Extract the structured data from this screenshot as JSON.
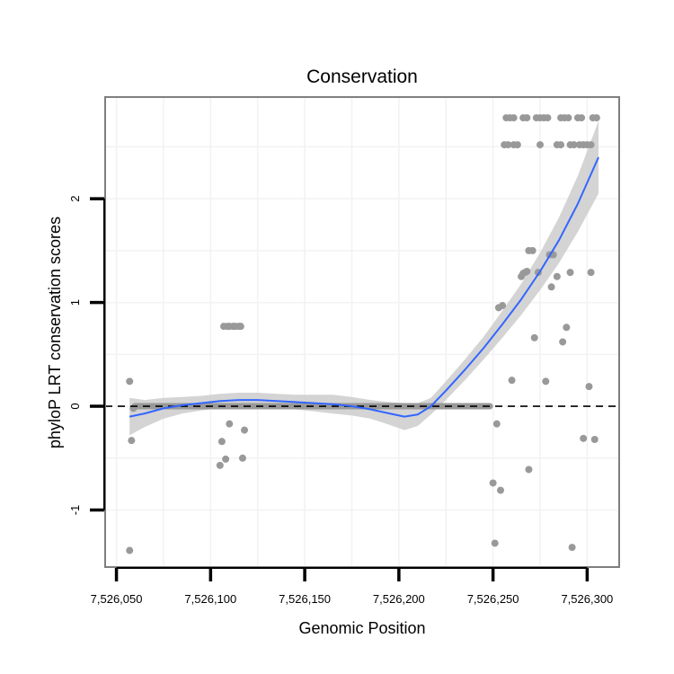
{
  "chart_data": {
    "type": "scatter",
    "title": "Conservation",
    "xlabel": "Genomic Position",
    "ylabel": "phyloP LRT conservation scores",
    "xlim": [
      7526044,
      7526317
    ],
    "ylim": [
      -1.55,
      2.98
    ],
    "x_ticks": [
      7526050,
      7526100,
      7526150,
      7526200,
      7526250,
      7526300
    ],
    "x_tick_labels": [
      "7,526,050",
      "7,526,100",
      "7,526,150",
      "7,526,200",
      "7,526,250",
      "7,526,300"
    ],
    "y_ticks": [
      -1,
      0,
      1,
      2
    ],
    "y_tick_labels": [
      "-1",
      "0",
      "1",
      "2"
    ],
    "reference_line_y": 0,
    "grid": true,
    "colors": {
      "points": "#999999",
      "smooth": "#3366FF",
      "band": "#cccccc",
      "panel_border": "#7f7f7f",
      "grid": "#f2f2f2"
    },
    "points": [
      {
        "x": 7526057,
        "y": 0.24
      },
      {
        "x": 7526058,
        "y": -0.33
      },
      {
        "x": 7526057,
        "y": -1.39
      },
      {
        "x": 7526059,
        "y": -0.02
      },
      {
        "x": 7526105,
        "y": -0.57
      },
      {
        "x": 7526106,
        "y": -0.34
      },
      {
        "x": 7526108,
        "y": -0.51
      },
      {
        "x": 7526110,
        "y": -0.17
      },
      {
        "x": 7526117,
        "y": -0.5
      },
      {
        "x": 7526118,
        "y": -0.23
      },
      {
        "x": 7526107,
        "y": 0.77
      },
      {
        "x": 7526109,
        "y": 0.77
      },
      {
        "x": 7526110,
        "y": 0.77
      },
      {
        "x": 7526112,
        "y": 0.77
      },
      {
        "x": 7526113,
        "y": 0.77
      },
      {
        "x": 7526115,
        "y": 0.77
      },
      {
        "x": 7526116,
        "y": 0.77
      },
      {
        "x": 7526250,
        "y": -0.74
      },
      {
        "x": 7526251,
        "y": -1.32
      },
      {
        "x": 7526252,
        "y": -0.17
      },
      {
        "x": 7526254,
        "y": -0.81
      },
      {
        "x": 7526253,
        "y": 0.95
      },
      {
        "x": 7526255,
        "y": 0.97
      },
      {
        "x": 7526260,
        "y": 0.25
      },
      {
        "x": 7526265,
        "y": 1.25
      },
      {
        "x": 7526266,
        "y": 1.28
      },
      {
        "x": 7526267,
        "y": 1.29
      },
      {
        "x": 7526268,
        "y": 1.3
      },
      {
        "x": 7526269,
        "y": -0.61
      },
      {
        "x": 7526269,
        "y": 1.5
      },
      {
        "x": 7526271,
        "y": 1.5
      },
      {
        "x": 7526272,
        "y": 0.66
      },
      {
        "x": 7526274,
        "y": 1.29
      },
      {
        "x": 7526278,
        "y": 0.24
      },
      {
        "x": 7526280,
        "y": 1.46
      },
      {
        "x": 7526281,
        "y": 1.15
      },
      {
        "x": 7526282,
        "y": 1.46
      },
      {
        "x": 7526284,
        "y": 1.25
      },
      {
        "x": 7526287,
        "y": 0.62
      },
      {
        "x": 7526289,
        "y": 0.76
      },
      {
        "x": 7526291,
        "y": 1.29
      },
      {
        "x": 7526292,
        "y": -1.36
      },
      {
        "x": 7526298,
        "y": -0.31
      },
      {
        "x": 7526301,
        "y": 0.19
      },
      {
        "x": 7526302,
        "y": 1.29
      },
      {
        "x": 7526304,
        "y": -0.32
      },
      {
        "x": 7526257,
        "y": 2.78
      },
      {
        "x": 7526259,
        "y": 2.78
      },
      {
        "x": 7526261,
        "y": 2.78
      },
      {
        "x": 7526266,
        "y": 2.78
      },
      {
        "x": 7526268,
        "y": 2.78
      },
      {
        "x": 7526273,
        "y": 2.78
      },
      {
        "x": 7526275,
        "y": 2.78
      },
      {
        "x": 7526277,
        "y": 2.78
      },
      {
        "x": 7526279,
        "y": 2.78
      },
      {
        "x": 7526286,
        "y": 2.78
      },
      {
        "x": 7526288,
        "y": 2.78
      },
      {
        "x": 7526290,
        "y": 2.78
      },
      {
        "x": 7526295,
        "y": 2.78
      },
      {
        "x": 7526297,
        "y": 2.78
      },
      {
        "x": 7526303,
        "y": 2.78
      },
      {
        "x": 7526305,
        "y": 2.78
      },
      {
        "x": 7526256,
        "y": 2.52
      },
      {
        "x": 7526258,
        "y": 2.52
      },
      {
        "x": 7526261,
        "y": 2.52
      },
      {
        "x": 7526263,
        "y": 2.52
      },
      {
        "x": 7526275,
        "y": 2.52
      },
      {
        "x": 7526284,
        "y": 2.52
      },
      {
        "x": 7526286,
        "y": 2.52
      },
      {
        "x": 7526291,
        "y": 2.52
      },
      {
        "x": 7526293,
        "y": 2.52
      },
      {
        "x": 7526296,
        "y": 2.52
      },
      {
        "x": 7526298,
        "y": 2.52
      },
      {
        "x": 7526300,
        "y": 2.52
      },
      {
        "x": 7526302,
        "y": 2.52
      }
    ],
    "zero_run": {
      "x_start": 7526058,
      "x_end": 7526250,
      "y": 0
    },
    "smooth_line": [
      {
        "x": 7526057,
        "y": -0.1
      },
      {
        "x": 7526065,
        "y": -0.07
      },
      {
        "x": 7526075,
        "y": -0.02
      },
      {
        "x": 7526085,
        "y": 0.01
      },
      {
        "x": 7526095,
        "y": 0.03
      },
      {
        "x": 7526105,
        "y": 0.05
      },
      {
        "x": 7526115,
        "y": 0.06
      },
      {
        "x": 7526125,
        "y": 0.06
      },
      {
        "x": 7526135,
        "y": 0.05
      },
      {
        "x": 7526145,
        "y": 0.04
      },
      {
        "x": 7526155,
        "y": 0.03
      },
      {
        "x": 7526165,
        "y": 0.02
      },
      {
        "x": 7526175,
        "y": 0.0
      },
      {
        "x": 7526185,
        "y": -0.03
      },
      {
        "x": 7526195,
        "y": -0.07
      },
      {
        "x": 7526203,
        "y": -0.1
      },
      {
        "x": 7526210,
        "y": -0.08
      },
      {
        "x": 7526217,
        "y": 0.0
      },
      {
        "x": 7526225,
        "y": 0.15
      },
      {
        "x": 7526235,
        "y": 0.35
      },
      {
        "x": 7526245,
        "y": 0.56
      },
      {
        "x": 7526255,
        "y": 0.79
      },
      {
        "x": 7526265,
        "y": 1.03
      },
      {
        "x": 7526275,
        "y": 1.3
      },
      {
        "x": 7526285,
        "y": 1.6
      },
      {
        "x": 7526295,
        "y": 1.95
      },
      {
        "x": 7526306,
        "y": 2.4
      }
    ],
    "confidence_band": [
      {
        "x": 7526057,
        "lower": -0.28,
        "upper": 0.08
      },
      {
        "x": 7526065,
        "lower": -0.2,
        "upper": 0.06
      },
      {
        "x": 7526075,
        "lower": -0.12,
        "upper": 0.08
      },
      {
        "x": 7526085,
        "lower": -0.07,
        "upper": 0.09
      },
      {
        "x": 7526095,
        "lower": -0.04,
        "upper": 0.1
      },
      {
        "x": 7526105,
        "lower": -0.02,
        "upper": 0.12
      },
      {
        "x": 7526115,
        "lower": -0.01,
        "upper": 0.13
      },
      {
        "x": 7526125,
        "lower": -0.01,
        "upper": 0.13
      },
      {
        "x": 7526135,
        "lower": -0.02,
        "upper": 0.12
      },
      {
        "x": 7526145,
        "lower": -0.03,
        "upper": 0.11
      },
      {
        "x": 7526155,
        "lower": -0.05,
        "upper": 0.11
      },
      {
        "x": 7526165,
        "lower": -0.07,
        "upper": 0.11
      },
      {
        "x": 7526175,
        "lower": -0.09,
        "upper": 0.09
      },
      {
        "x": 7526185,
        "lower": -0.12,
        "upper": 0.06
      },
      {
        "x": 7526195,
        "lower": -0.18,
        "upper": 0.04
      },
      {
        "x": 7526203,
        "lower": -0.23,
        "upper": 0.03
      },
      {
        "x": 7526210,
        "lower": -0.19,
        "upper": 0.03
      },
      {
        "x": 7526217,
        "lower": -0.08,
        "upper": 0.08
      },
      {
        "x": 7526225,
        "lower": 0.06,
        "upper": 0.24
      },
      {
        "x": 7526235,
        "lower": 0.25,
        "upper": 0.45
      },
      {
        "x": 7526245,
        "lower": 0.45,
        "upper": 0.67
      },
      {
        "x": 7526255,
        "lower": 0.66,
        "upper": 0.92
      },
      {
        "x": 7526265,
        "lower": 0.88,
        "upper": 1.18
      },
      {
        "x": 7526275,
        "lower": 1.12,
        "upper": 1.48
      },
      {
        "x": 7526285,
        "lower": 1.38,
        "upper": 1.82
      },
      {
        "x": 7526295,
        "lower": 1.68,
        "upper": 2.22
      },
      {
        "x": 7526306,
        "lower": 2.05,
        "upper": 2.75
      }
    ]
  }
}
